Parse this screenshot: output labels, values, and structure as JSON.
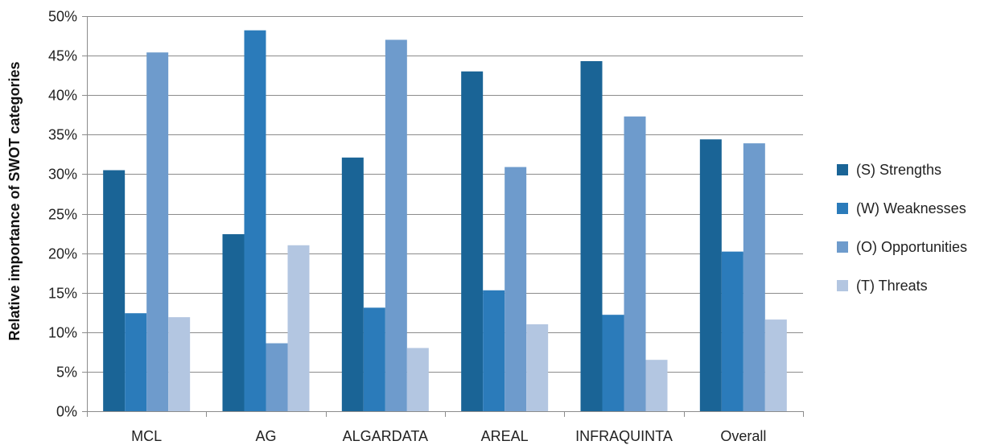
{
  "chart_data": {
    "type": "bar",
    "title": "",
    "xlabel": "",
    "ylabel": "Relative importance of SWOT categories",
    "ylim": [
      0,
      50
    ],
    "y_tick_step": 5,
    "y_tick_suffix": "%",
    "grid": true,
    "legend_position": "right",
    "categories": [
      "MCL",
      "AG",
      "ALGARDATA",
      "AREAL",
      "INFRAQUINTA",
      "Overall"
    ],
    "series": [
      {
        "name": "(S) Strengths",
        "color": "#1a6496",
        "values": [
          30.5,
          22.4,
          32.1,
          43.0,
          44.3,
          34.4
        ]
      },
      {
        "name": "(W) Weaknesses",
        "color": "#2b7bba",
        "values": [
          12.4,
          48.2,
          13.1,
          15.3,
          12.2,
          20.2
        ]
      },
      {
        "name": "(O) Opportunities",
        "color": "#6e9bcc",
        "values": [
          45.4,
          8.6,
          47.0,
          30.9,
          37.3,
          33.9
        ]
      },
      {
        "name": "(T) Threats",
        "color": "#b3c6e1",
        "values": [
          11.9,
          21.0,
          8.0,
          11.0,
          6.5,
          11.6
        ]
      }
    ]
  }
}
